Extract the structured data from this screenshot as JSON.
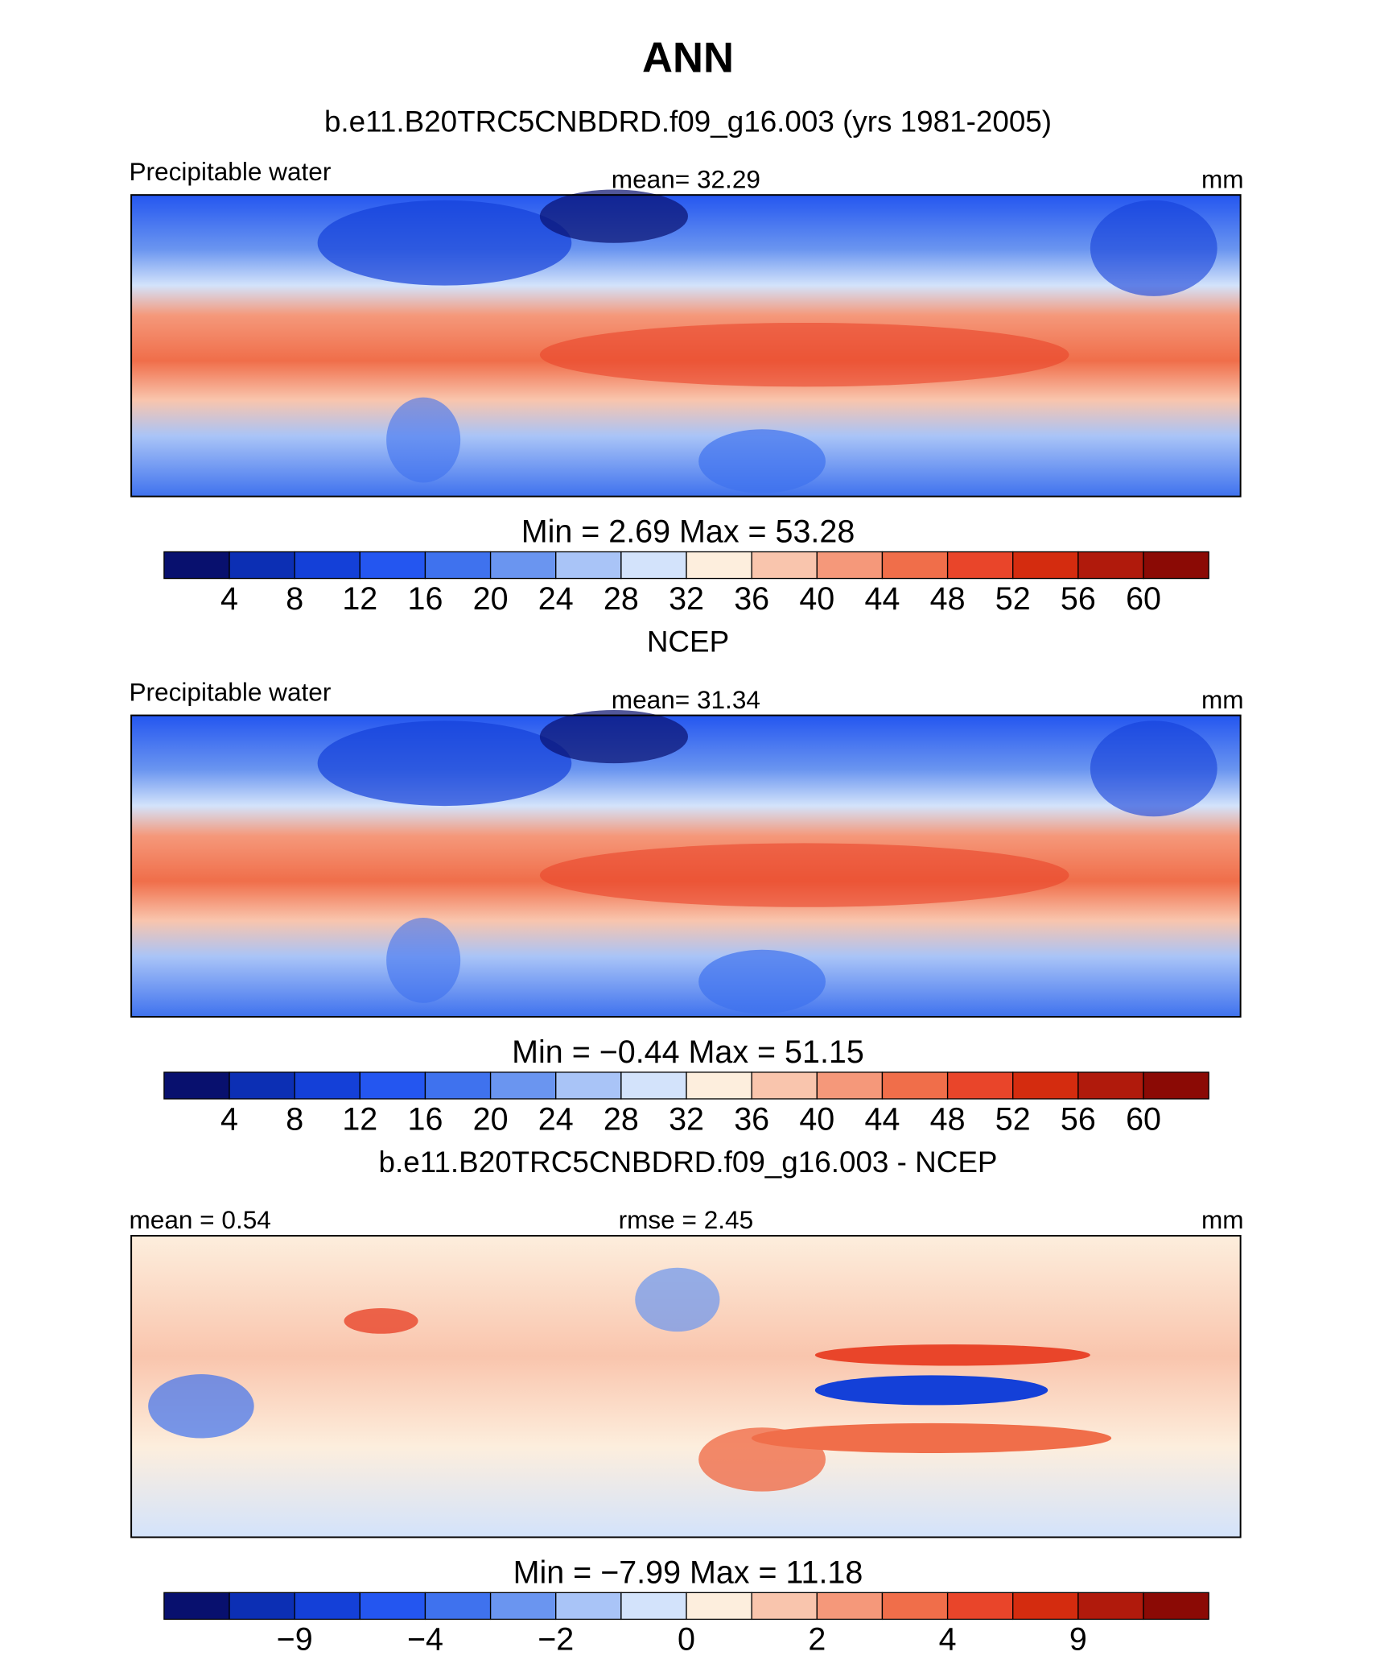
{
  "title": "ANN",
  "colorbar_colors": [
    "#08106e",
    "#0c2fb4",
    "#1440d8",
    "#2456f0",
    "#3f72ee",
    "#6a95f0",
    "#a9c4f7",
    "#d3e3fb",
    "#fdeedd",
    "#f9c5ad",
    "#f5987a",
    "#f06e4a",
    "#e9452a",
    "#d42c0f",
    "#b01a0c",
    "#8b0a05"
  ],
  "panels": [
    {
      "subtitle": "b.e11.B20TRC5CNBDRD.f09_g16.003 (yrs 1981-2005)",
      "left": "Precipitable water",
      "center": "mean= 32.29",
      "right": "mm",
      "minmax": "Min = 2.69 Max = 53.28",
      "colorbar_labels": [
        "4",
        "8",
        "12",
        "16",
        "20",
        "24",
        "28",
        "32",
        "36",
        "40",
        "44",
        "48",
        "52",
        "56",
        "60"
      ]
    },
    {
      "subtitle": "NCEP",
      "left": "Precipitable water",
      "center": "mean= 31.34",
      "right": "mm",
      "minmax": "Min = −0.44 Max = 51.15",
      "colorbar_labels": [
        "4",
        "8",
        "12",
        "16",
        "20",
        "24",
        "28",
        "32",
        "36",
        "40",
        "44",
        "48",
        "52",
        "56",
        "60"
      ]
    },
    {
      "subtitle": "b.e11.B20TRC5CNBDRD.f09_g16.003 - NCEP",
      "left": "mean = 0.54",
      "center": "rmse = 2.45",
      "right": "mm",
      "minmax": "Min = −7.99 Max = 11.18",
      "colorbar_labels": [
        null,
        "−9",
        null,
        "−4",
        null,
        "−2",
        null,
        "0",
        null,
        "2",
        null,
        "4",
        null,
        "9",
        null
      ]
    }
  ]
}
